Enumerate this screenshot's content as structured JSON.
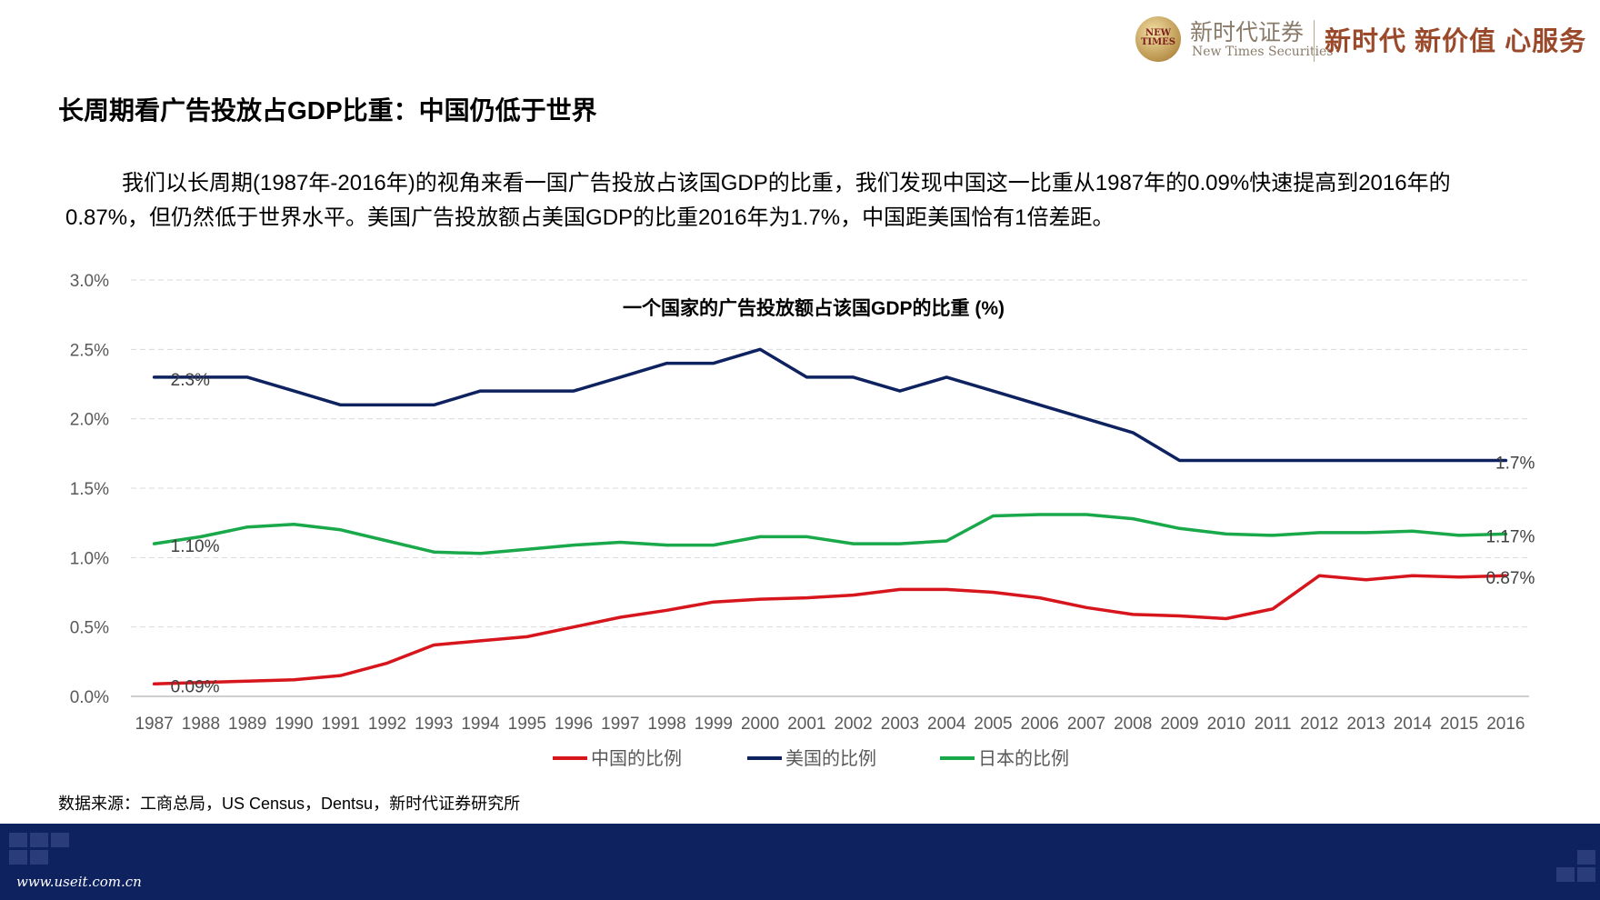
{
  "header": {
    "logo_badge": "NEW TIMES",
    "logo_cn": "新时代证券",
    "logo_en": "New Times Securities",
    "slogan": "新时代 新价值 心服务"
  },
  "slide": {
    "title": "长周期看广告投放占GDP比重：中国仍低于世界",
    "body": "我们以长周期(1987年-2016年)的视角来看一国广告投放占该国GDP的比重，我们发现中国这一比重从1987年的0.09%快速提高到2016年的0.87%，但仍然低于世界水平。美国广告投放额占美国GDP的比重2016年为1.7%，中国距美国恰有1倍差距。",
    "source": "数据来源：工商总局，US Census，Dentsu，新时代证券研究所"
  },
  "footer": {
    "url": "www.useit.com.cn"
  },
  "colors": {
    "china": "#d7151c",
    "usa": "#0e2260",
    "japan": "#19a84a",
    "footer_bg": "#0e2260"
  },
  "chart_data": {
    "type": "line",
    "title": "一个国家的广告投放额占该国GDP的比重 (%)",
    "xlabel": "",
    "ylabel": "",
    "ylim": [
      0,
      3.0
    ],
    "y_ticks": [
      "0.0%",
      "0.5%",
      "1.0%",
      "1.5%",
      "2.0%",
      "2.5%",
      "3.0%"
    ],
    "grid": true,
    "legend_position": "bottom",
    "categories": [
      "1987",
      "1988",
      "1989",
      "1990",
      "1991",
      "1992",
      "1993",
      "1994",
      "1995",
      "1996",
      "1997",
      "1998",
      "1999",
      "2000",
      "2001",
      "2002",
      "2003",
      "2004",
      "2005",
      "2006",
      "2007",
      "2008",
      "2009",
      "2010",
      "2011",
      "2012",
      "2013",
      "2014",
      "2015",
      "2016"
    ],
    "series": [
      {
        "name": "中国的比例",
        "color": "#d7151c",
        "values": [
          0.09,
          0.1,
          0.11,
          0.12,
          0.15,
          0.24,
          0.37,
          0.4,
          0.43,
          0.5,
          0.57,
          0.62,
          0.68,
          0.7,
          0.71,
          0.73,
          0.77,
          0.77,
          0.75,
          0.71,
          0.64,
          0.59,
          0.58,
          0.56,
          0.63,
          0.87,
          0.84,
          0.87,
          0.86,
          0.87
        ],
        "labels": [
          {
            "index": 0,
            "text": "0.09%"
          },
          {
            "index": 29,
            "text": "0.87%"
          }
        ]
      },
      {
        "name": "美国的比例",
        "color": "#0e2260",
        "values": [
          2.3,
          2.3,
          2.3,
          2.2,
          2.1,
          2.1,
          2.1,
          2.2,
          2.2,
          2.2,
          2.3,
          2.4,
          2.4,
          2.5,
          2.3,
          2.3,
          2.2,
          2.3,
          2.2,
          2.1,
          2.0,
          1.9,
          1.7,
          1.7,
          1.7,
          1.7,
          1.7,
          1.7,
          1.7,
          1.7
        ],
        "labels": [
          {
            "index": 0,
            "text": "2.3%"
          },
          {
            "index": 29,
            "text": "1.7%"
          }
        ]
      },
      {
        "name": "日本的比例",
        "color": "#19a84a",
        "values": [
          1.1,
          1.15,
          1.22,
          1.24,
          1.2,
          1.12,
          1.04,
          1.03,
          1.06,
          1.09,
          1.11,
          1.09,
          1.09,
          1.15,
          1.15,
          1.1,
          1.1,
          1.12,
          1.3,
          1.31,
          1.31,
          1.28,
          1.21,
          1.17,
          1.16,
          1.18,
          1.18,
          1.19,
          1.16,
          1.17
        ],
        "labels": [
          {
            "index": 0,
            "text": "1.10%"
          },
          {
            "index": 29,
            "text": "1.17%"
          }
        ]
      }
    ]
  }
}
